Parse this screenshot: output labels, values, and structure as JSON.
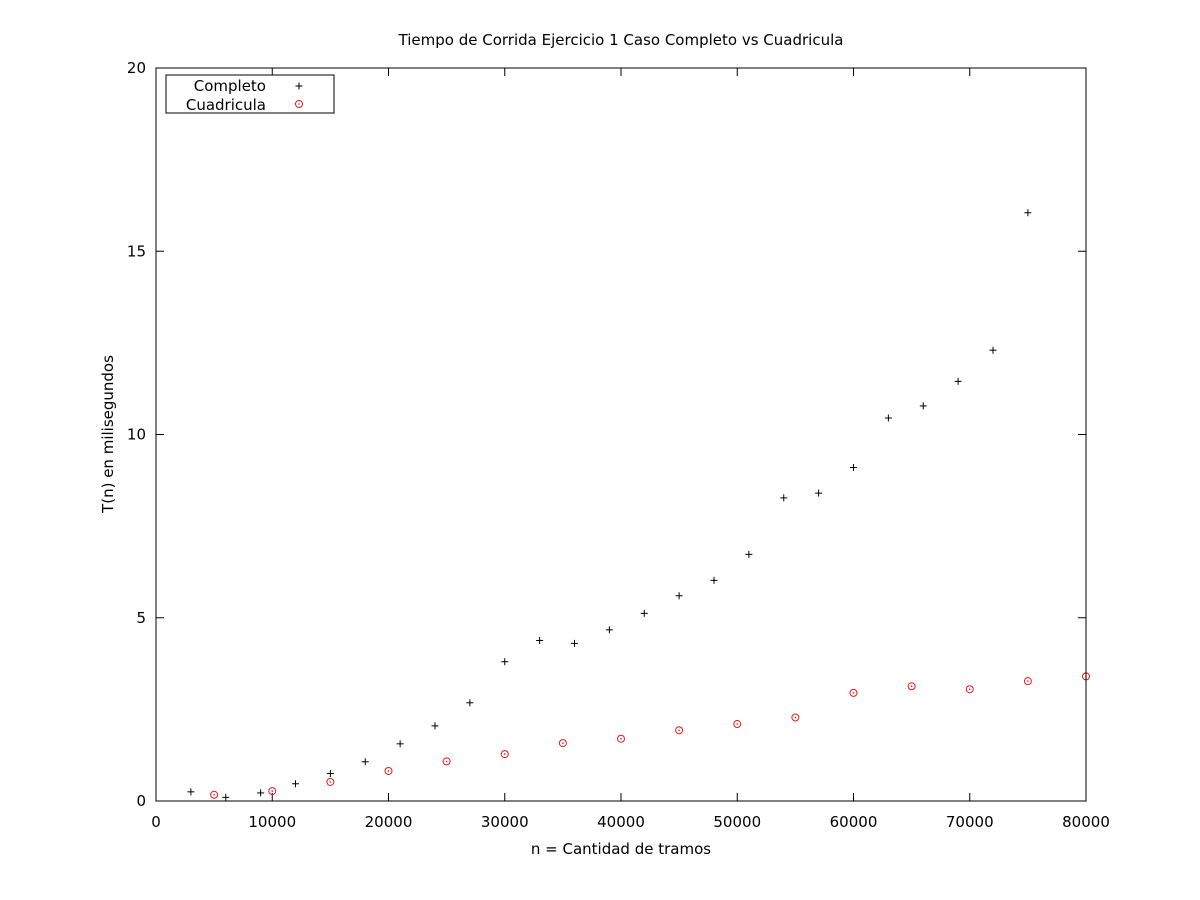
{
  "chart_data": {
    "type": "scatter",
    "title": "Tiempo de Corrida Ejercicio 1 Caso Completo vs Cuadricula",
    "xlabel": "n = Cantidad de tramos",
    "ylabel": "T(n) en milisegundos",
    "xlim": [
      0,
      80000
    ],
    "ylim": [
      0,
      20
    ],
    "xticks": [
      0,
      10000,
      20000,
      30000,
      40000,
      50000,
      60000,
      70000,
      80000
    ],
    "yticks": [
      0,
      5,
      10,
      15,
      20
    ],
    "grid": false,
    "legend_position": "top-left",
    "series": [
      {
        "name": "Completo",
        "marker": "plus",
        "color": "#000000",
        "x": [
          3000,
          6000,
          9000,
          12000,
          15000,
          18000,
          21000,
          24000,
          27000,
          30000,
          33000,
          36000,
          39000,
          42000,
          45000,
          48000,
          51000,
          54000,
          57000,
          60000,
          63000,
          66000,
          69000,
          72000,
          75000
        ],
        "y": [
          0.25,
          0.1,
          0.22,
          0.47,
          0.75,
          1.07,
          1.56,
          2.05,
          2.68,
          3.8,
          4.38,
          4.3,
          4.67,
          5.12,
          5.6,
          6.02,
          6.73,
          8.27,
          8.4,
          9.1,
          10.45,
          10.78,
          11.45,
          12.3,
          16.05
        ]
      },
      {
        "name": "Cuadricula",
        "marker": "circle",
        "color": "#e8191b",
        "x": [
          5000,
          10000,
          15000,
          20000,
          25000,
          30000,
          35000,
          40000,
          45000,
          50000,
          55000,
          60000,
          65000,
          70000,
          75000,
          80000
        ],
        "y": [
          0.17,
          0.27,
          0.52,
          0.82,
          1.08,
          1.28,
          1.58,
          1.7,
          1.93,
          2.1,
          2.28,
          2.95,
          3.13,
          3.05,
          3.27,
          3.4
        ]
      }
    ]
  }
}
